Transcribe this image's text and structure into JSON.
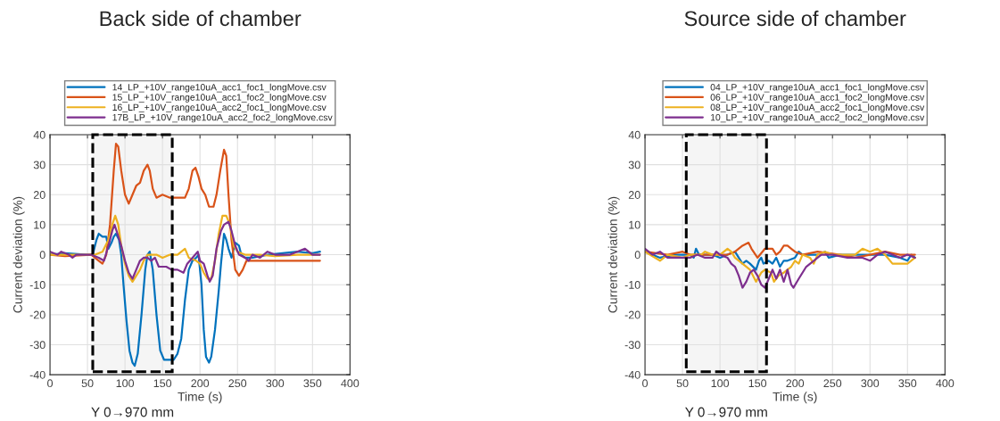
{
  "chart_data": [
    {
      "type": "line",
      "title": "Back side of chamber",
      "xlabel": "Time (s)",
      "ylabel": "Current deviation (%)",
      "xlim": [
        0,
        400
      ],
      "ylim": [
        -40,
        40
      ],
      "xticks": [
        0,
        50,
        100,
        150,
        200,
        250,
        300,
        350,
        400
      ],
      "yticks": [
        -40,
        -30,
        -20,
        -10,
        0,
        10,
        20,
        30,
        40
      ],
      "grid": true,
      "legend": "top",
      "line_style": "solid",
      "bands": [
        {
          "axis": "x",
          "from": 57,
          "to": 163,
          "label": "Y 0→970 mm",
          "color": "#000000"
        }
      ],
      "series": [
        {
          "name": "14_LP_+10V_range10uA_acc1_foc1_longMove.csv",
          "color": "#0072bd",
          "x": [
            0,
            20,
            50,
            57,
            62,
            65,
            70,
            75,
            78,
            82,
            85,
            88,
            92,
            95,
            98,
            102,
            106,
            110,
            113,
            117,
            122,
            127,
            130,
            133,
            137,
            142,
            147,
            152,
            158,
            165,
            170,
            175,
            180,
            185,
            190,
            195,
            198,
            202,
            205,
            208,
            212,
            215,
            220,
            225,
            228,
            232,
            235,
            238,
            242,
            247,
            252,
            255,
            260,
            270,
            290,
            310,
            330,
            350,
            360
          ],
          "values": [
            0,
            0.5,
            0,
            0,
            5,
            7,
            6,
            6,
            2,
            4,
            6,
            7,
            5,
            0,
            -10,
            -22,
            -32,
            -36,
            -37,
            -33,
            -20,
            -5,
            0,
            1,
            -5,
            -20,
            -32,
            -35,
            -35,
            -35,
            -33,
            -28,
            -15,
            -5,
            -2,
            -1,
            0,
            -10,
            -25,
            -34,
            -36,
            -34,
            -25,
            -12,
            -3,
            7,
            5,
            2,
            -1,
            4,
            3,
            0,
            -1,
            -1,
            0,
            0.5,
            1,
            0.5,
            1
          ]
        },
        {
          "name": "15_LP_+10V_range10uA_acc1_foc2_longMove.csv",
          "color": "#d95319",
          "x": [
            0,
            20,
            55,
            65,
            70,
            75,
            80,
            85,
            88,
            91,
            95,
            100,
            105,
            110,
            115,
            120,
            125,
            130,
            133,
            137,
            142,
            150,
            160,
            170,
            180,
            185,
            190,
            194,
            198,
            202,
            207,
            212,
            218,
            222,
            227,
            232,
            235,
            238,
            242,
            247,
            252,
            257,
            262,
            270,
            300,
            330,
            360
          ],
          "values": [
            0,
            -0.5,
            0,
            -2,
            -3,
            0,
            10,
            28,
            37,
            36,
            28,
            20,
            17,
            20,
            23,
            24,
            28,
            30,
            28,
            22,
            19,
            20,
            19,
            19,
            19,
            22,
            28,
            29,
            26,
            22,
            20,
            16,
            16,
            20,
            28,
            35,
            33,
            20,
            5,
            -5,
            -7,
            -5,
            -2,
            -2,
            -2,
            -2,
            -2
          ]
        },
        {
          "name": "16_LP_+10V_range10uA_acc2_foc1_longMove.csv",
          "color": "#edb120",
          "x": [
            0,
            50,
            60,
            70,
            78,
            83,
            87,
            91,
            95,
            100,
            105,
            110,
            115,
            120,
            125,
            130,
            135,
            142,
            150,
            160,
            170,
            180,
            185,
            195,
            200,
            205,
            210,
            215,
            220,
            225,
            230,
            235,
            240,
            245,
            250,
            260,
            280,
            300,
            330,
            360
          ],
          "values": [
            0,
            0,
            0,
            1,
            5,
            10,
            13,
            10,
            3,
            -3,
            -7,
            -9,
            -7,
            -5,
            -2,
            0,
            0,
            0,
            -1,
            0,
            0,
            2,
            -1,
            -2,
            -3,
            -6,
            -8,
            -8,
            -2,
            7,
            13,
            13,
            10,
            3,
            1,
            0,
            0,
            -0.5,
            0,
            0
          ]
        },
        {
          "name": "17B_LP_+10V_range10uA_acc2_foc2_longMove.csv",
          "color": "#7e2f8e",
          "x": [
            0,
            10,
            15,
            25,
            30,
            35,
            55,
            65,
            72,
            78,
            83,
            86,
            90,
            95,
            100,
            105,
            110,
            115,
            120,
            125,
            130,
            135,
            140,
            145,
            155,
            162,
            170,
            178,
            183,
            190,
            197,
            200,
            205,
            210,
            213,
            217,
            222,
            228,
            232,
            238,
            242,
            247,
            252,
            260,
            265,
            270,
            280,
            290,
            300,
            320,
            340,
            350,
            360
          ],
          "values": [
            1,
            0,
            1,
            0,
            -1,
            0,
            0,
            -1,
            -2,
            3,
            8,
            10,
            7,
            3,
            -2,
            -6,
            -8,
            -5,
            -2,
            -1,
            -1,
            -2,
            -1,
            -4,
            -4,
            -5,
            -5,
            -6,
            -3,
            -1,
            1,
            -2,
            -3,
            -7,
            -9,
            -7,
            2,
            8,
            10,
            11,
            8,
            3,
            0,
            -1,
            -2,
            0,
            -1,
            1,
            0,
            0,
            2,
            0,
            0
          ]
        }
      ]
    },
    {
      "type": "line",
      "title": "Source side of chamber",
      "xlabel": "Time (s)",
      "ylabel": "Current deviation (%)",
      "xlim": [
        0,
        400
      ],
      "ylim": [
        -40,
        40
      ],
      "xticks": [
        0,
        50,
        100,
        150,
        200,
        250,
        300,
        350,
        400
      ],
      "yticks": [
        -40,
        -30,
        -20,
        -10,
        0,
        10,
        20,
        30,
        40
      ],
      "grid": true,
      "legend": "top",
      "line_style": "solid",
      "bands": [
        {
          "axis": "x",
          "from": 55,
          "to": 162,
          "label": "Y 0→970 mm",
          "color": "#000000"
        }
      ],
      "series": [
        {
          "name": "04_LP_+10V_range10uA_acc1_foc1_longMove.csv",
          "color": "#0072bd",
          "x": [
            0,
            20,
            40,
            60,
            65,
            68,
            72,
            90,
            100,
            110,
            120,
            125,
            130,
            135,
            140,
            148,
            152,
            155,
            158,
            165,
            170,
            175,
            180,
            185,
            190,
            200,
            205,
            210,
            230,
            240,
            245,
            260,
            280,
            300,
            320,
            340,
            350,
            355,
            360
          ],
          "values": [
            1,
            -1,
            0,
            0,
            -1,
            2,
            0,
            0,
            -1,
            0,
            1,
            -1,
            -3,
            -2,
            -3,
            -5,
            -2,
            -1,
            -3,
            -2,
            -3,
            -1,
            -4,
            -2,
            -2,
            -1,
            1,
            0,
            0,
            1,
            -1,
            0,
            0,
            0,
            0,
            -1,
            -2,
            0,
            -1
          ]
        },
        {
          "name": "06_LP_+10V_range10uA_acc1_foc2_longMove.csv",
          "color": "#d95319",
          "x": [
            0,
            30,
            50,
            60,
            80,
            100,
            110,
            120,
            130,
            138,
            142,
            150,
            160,
            170,
            175,
            180,
            185,
            190,
            195,
            200,
            210,
            230,
            260,
            280,
            300,
            320,
            340,
            360
          ],
          "values": [
            1,
            0,
            1,
            0,
            0,
            0,
            0,
            1,
            3,
            4,
            2,
            -1,
            2,
            2,
            0,
            1,
            3,
            3,
            2,
            1,
            0,
            1,
            0,
            -1,
            0,
            1,
            0,
            0
          ]
        },
        {
          "name": "08_LP_+10V_range10uA_acc2_foc1_longMove.csv",
          "color": "#edb120",
          "x": [
            0,
            20,
            30,
            50,
            60,
            75,
            80,
            90,
            100,
            110,
            115,
            120,
            130,
            140,
            148,
            155,
            160,
            168,
            172,
            178,
            185,
            195,
            200,
            205,
            210,
            220,
            225,
            230,
            240,
            250,
            270,
            280,
            290,
            300,
            310,
            320,
            330,
            340,
            350,
            360
          ],
          "values": [
            1,
            -2,
            0,
            -1,
            0,
            0,
            1,
            0,
            0,
            2,
            1,
            -1,
            -3,
            -5,
            -9,
            -6,
            -5,
            -6,
            -9,
            -7,
            -6,
            -4,
            -2,
            -3,
            0,
            -1,
            -3,
            0,
            1,
            0,
            0,
            0,
            2,
            1,
            2,
            0,
            -3,
            -3,
            -3,
            -1
          ]
        },
        {
          "name": "10_LP_+10V_range10uA_acc2_foc2_longMove.csv",
          "color": "#7e2f8e",
          "x": [
            0,
            10,
            20,
            30,
            50,
            60,
            70,
            80,
            90,
            95,
            100,
            110,
            115,
            120,
            125,
            130,
            135,
            140,
            145,
            150,
            155,
            160,
            165,
            170,
            175,
            180,
            185,
            190,
            195,
            198,
            205,
            215,
            225,
            235,
            250,
            270,
            290,
            300,
            310,
            320,
            330,
            340,
            350,
            360
          ],
          "values": [
            2,
            0,
            1,
            -1,
            -1,
            -1,
            0,
            -1,
            -1,
            1,
            0,
            -1,
            -3,
            -4,
            -7,
            -11,
            -9,
            -6,
            -5,
            -7,
            -10,
            -11,
            -8,
            -5,
            -8,
            -5,
            -9,
            -5,
            -10,
            -11,
            -8,
            -4,
            -2,
            0,
            0,
            -1,
            -1,
            -2,
            0,
            1,
            0,
            -1,
            0,
            -1
          ]
        }
      ]
    }
  ]
}
